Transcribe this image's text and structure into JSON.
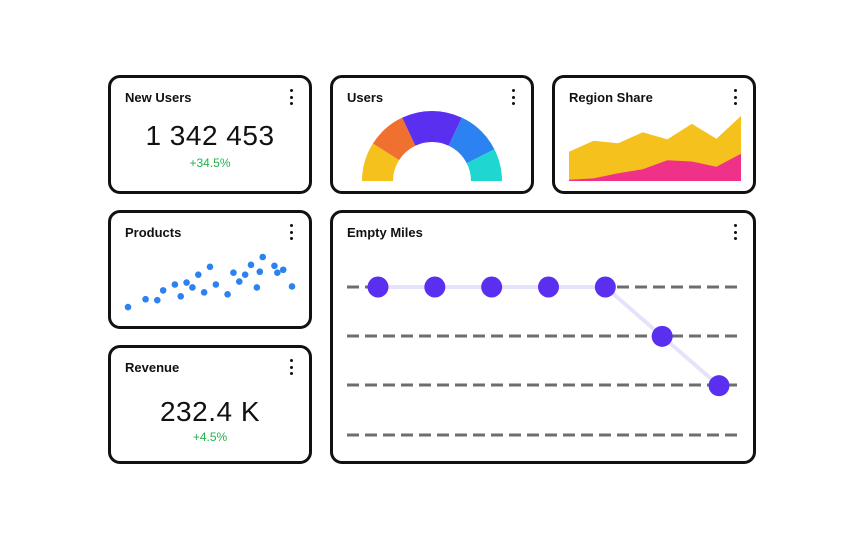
{
  "colors": {
    "positive": "#22b14c",
    "purple": "#5a2ff0",
    "purple_line": "#e6e2fb",
    "blue_dot": "#2b82f0",
    "dash": "#6e6e6e",
    "gauge": [
      "#f5c21d",
      "#f07030",
      "#5a2ff0",
      "#2b82f0",
      "#1fd6d0"
    ],
    "area_back": "#f5c21d",
    "area_front": "#f0318a"
  },
  "new_users": {
    "title": "New Users",
    "value": "1 342 453",
    "delta": "+34.5%",
    "menu_icon": "kebab-icon"
  },
  "users": {
    "title": "Users",
    "menu_icon": "kebab-icon"
  },
  "region_share": {
    "title": "Region Share",
    "menu_icon": "kebab-icon"
  },
  "products": {
    "title": "Products",
    "menu_icon": "kebab-icon"
  },
  "revenue": {
    "title": "Revenue",
    "value": "232.4 K",
    "delta": "+4.5%",
    "menu_icon": "kebab-icon"
  },
  "empty_miles": {
    "title": "Empty Miles",
    "menu_icon": "kebab-icon"
  },
  "chart_data": [
    {
      "type": "pie",
      "chart": "users-gauge",
      "segments": [
        {
          "value": 18
        },
        {
          "value": 18
        },
        {
          "value": 28
        },
        {
          "value": 21
        },
        {
          "value": 15
        }
      ]
    },
    {
      "type": "area",
      "chart": "region-share",
      "x": [
        0,
        1,
        2,
        3,
        4,
        5,
        6,
        7
      ],
      "series": [
        {
          "values": [
            45,
            62,
            58,
            75,
            64,
            88,
            65,
            100
          ]
        },
        {
          "values": [
            2,
            4,
            12,
            18,
            32,
            30,
            22,
            42
          ]
        }
      ],
      "ylim": [
        0,
        100
      ]
    },
    {
      "type": "scatter",
      "chart": "products",
      "points": [
        [
          0,
          5
        ],
        [
          3,
          13
        ],
        [
          5,
          12
        ],
        [
          6,
          22
        ],
        [
          8,
          28
        ],
        [
          9,
          16
        ],
        [
          10,
          30
        ],
        [
          11,
          25
        ],
        [
          12,
          38
        ],
        [
          13,
          20
        ],
        [
          14,
          46
        ],
        [
          15,
          28
        ],
        [
          17,
          18
        ],
        [
          18,
          40
        ],
        [
          19,
          31
        ],
        [
          20,
          38
        ],
        [
          21,
          48
        ],
        [
          22,
          25
        ],
        [
          22.5,
          41
        ],
        [
          23,
          56
        ],
        [
          25,
          47
        ],
        [
          25.5,
          40
        ],
        [
          26.5,
          43
        ],
        [
          28,
          26
        ]
      ]
    },
    {
      "type": "line",
      "chart": "empty-miles",
      "x": [
        1,
        2,
        3,
        4,
        5,
        6,
        7
      ],
      "values": [
        3,
        3,
        3,
        3,
        3,
        2,
        1
      ],
      "ylim": [
        0,
        3
      ]
    }
  ]
}
